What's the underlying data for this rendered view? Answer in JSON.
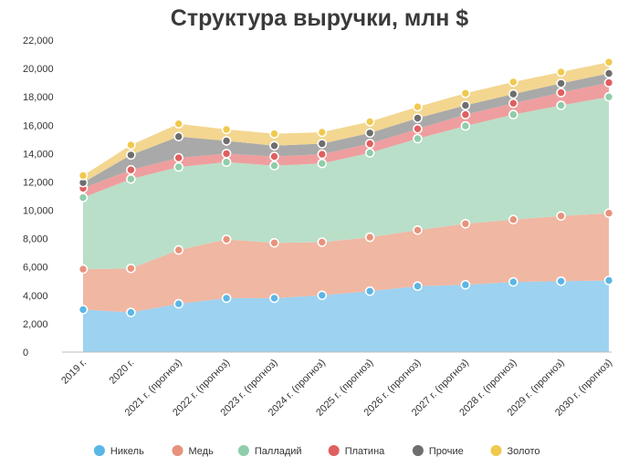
{
  "chart_data": {
    "type": "area",
    "title": "Структура выручки, млн $",
    "xlabel": "",
    "ylabel": "",
    "ylim": [
      0,
      22000
    ],
    "yticks": [
      0,
      2000,
      4000,
      6000,
      8000,
      10000,
      12000,
      14000,
      16000,
      18000,
      20000,
      22000
    ],
    "ytick_labels": [
      "0",
      "2,000",
      "4,000",
      "6,000",
      "8,000",
      "10,000",
      "12,000",
      "14,000",
      "16,000",
      "18,000",
      "20,000",
      "22,000"
    ],
    "stacked": true,
    "grid": false,
    "legend_position": "bottom",
    "categories": [
      "2019 г.",
      "2020 г.",
      "2021 г. (прогноз)",
      "2022 г. (прогноз)",
      "2023 г. (прогноз)",
      "2024 г. (прогноз)",
      "2025 г. (прогноз)",
      "2026 г. (прогноз)",
      "2027 г. (прогноз)",
      "2028 г. (прогноз)",
      "2029 г. (прогноз)",
      "2030 г. (прогноз)"
    ],
    "series": [
      {
        "name": "Никель",
        "color": "#9dd2f0",
        "marker": "#5bb6e6",
        "values": [
          3000,
          2800,
          3400,
          3800,
          3800,
          4000,
          4300,
          4650,
          4750,
          4950,
          5000,
          5050
        ]
      },
      {
        "name": "Медь",
        "color": "#f0b7a3",
        "marker": "#e8927c",
        "values": [
          2850,
          3100,
          3800,
          4150,
          3900,
          3750,
          3800,
          3950,
          4300,
          4400,
          4600,
          4750
        ]
      },
      {
        "name": "Палладий",
        "color": "#b9dfc9",
        "marker": "#8fcdaa",
        "values": [
          5050,
          6300,
          5850,
          5450,
          5450,
          5550,
          5950,
          6450,
          6900,
          7400,
          7800,
          8200
        ]
      },
      {
        "name": "Платина",
        "color": "#ee9e9e",
        "marker": "#e05f5f",
        "values": [
          650,
          650,
          650,
          600,
          650,
          650,
          650,
          700,
          800,
          800,
          900,
          1000
        ]
      },
      {
        "name": "Прочие",
        "color": "#a9a9a9",
        "marker": "#6e6e6e",
        "values": [
          400,
          1050,
          1500,
          900,
          750,
          750,
          750,
          750,
          650,
          650,
          650,
          650
        ]
      },
      {
        "name": "Золото",
        "color": "#f3d690",
        "marker": "#f0c94e",
        "values": [
          500,
          700,
          900,
          800,
          850,
          800,
          800,
          800,
          850,
          850,
          800,
          800
        ]
      }
    ]
  }
}
